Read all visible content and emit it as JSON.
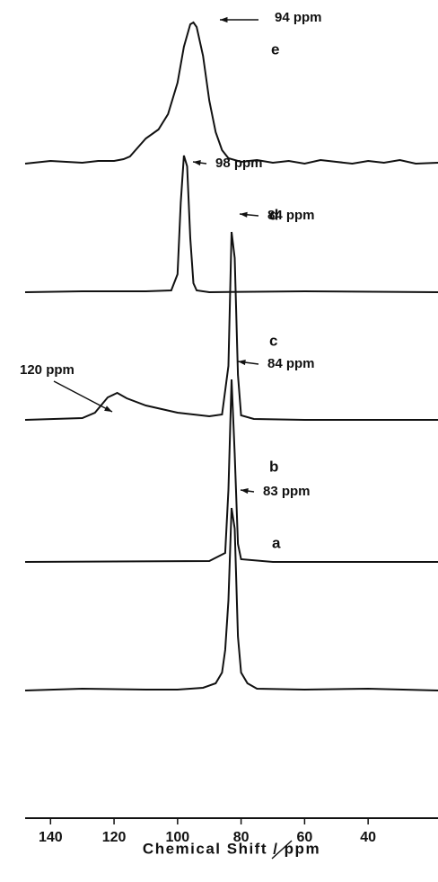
{
  "chart_data": {
    "type": "line",
    "xlabel": "Chemical Shift / ppm",
    "xlim": [
      148,
      18
    ],
    "xticks": [
      140,
      120,
      100,
      80,
      60,
      40
    ],
    "series": [
      {
        "name": "e",
        "color": "#111111",
        "annotations": [
          "94 ppm"
        ],
        "x": [
          148,
          140,
          130,
          125,
          120,
          117,
          115,
          112,
          110,
          106,
          103,
          100,
          98,
          96,
          95,
          94,
          92,
          90,
          88,
          86,
          84,
          80,
          75,
          70,
          65,
          60,
          55,
          50,
          45,
          40,
          35,
          30,
          25,
          18
        ],
        "values": [
          0,
          3,
          1,
          3,
          3,
          5,
          8,
          20,
          28,
          38,
          55,
          90,
          130,
          155,
          157,
          152,
          120,
          70,
          35,
          15,
          6,
          2,
          4,
          1,
          3,
          0,
          4,
          2,
          0,
          3,
          1,
          4,
          0,
          1
        ]
      },
      {
        "name": "d",
        "color": "#111111",
        "annotations": [
          "98 ppm"
        ],
        "x": [
          148,
          130,
          110,
          102,
          100,
          99,
          98,
          97,
          96,
          95,
          94,
          90,
          60,
          18
        ],
        "values": [
          0,
          1,
          1,
          2,
          20,
          100,
          152,
          140,
          60,
          10,
          2,
          0,
          1,
          0
        ]
      },
      {
        "name": "c",
        "color": "#111111",
        "annotations": [
          "84 ppm",
          "120 ppm"
        ],
        "x": [
          148,
          130,
          126,
          122,
          119,
          116,
          110,
          100,
          90,
          86,
          84,
          83,
          82,
          81,
          80,
          76,
          60,
          18
        ],
        "values": [
          0,
          2,
          8,
          25,
          30,
          24,
          16,
          8,
          4,
          6,
          60,
          209,
          180,
          50,
          5,
          1,
          0,
          0
        ]
      },
      {
        "name": "b",
        "color": "#111111",
        "annotations": [
          "84 ppm"
        ],
        "x": [
          148,
          90,
          85,
          84,
          83,
          82,
          81,
          80,
          70,
          18
        ],
        "values": [
          0,
          1,
          10,
          80,
          203,
          120,
          20,
          3,
          0,
          0
        ]
      },
      {
        "name": "a",
        "color": "#111111",
        "annotations": [
          "83 ppm"
        ],
        "x": [
          148,
          130,
          110,
          100,
          92,
          88,
          86,
          85,
          84,
          83,
          82,
          81,
          80,
          78,
          75,
          60,
          40,
          18
        ],
        "values": [
          0,
          2,
          1,
          1,
          3,
          8,
          20,
          45,
          100,
          203,
          180,
          60,
          20,
          8,
          2,
          1,
          2,
          0
        ]
      }
    ]
  }
}
